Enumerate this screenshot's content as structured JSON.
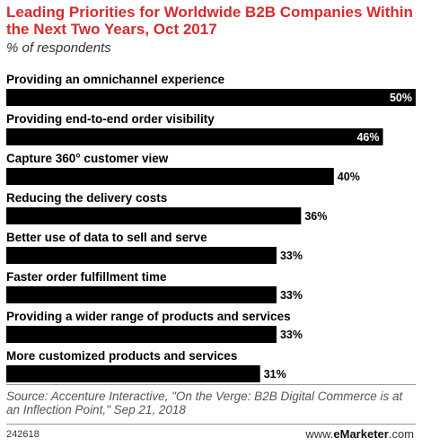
{
  "chart_data": {
    "type": "bar",
    "orientation": "horizontal",
    "title": "Leading Priorities for Worldwide B2B Companies Within the Next Two Years, Oct 2017",
    "subtitle": "% of respondents",
    "categories": [
      "Providing an omnichannel experience",
      "Providing end-to-end order visibility",
      "Capture 360° customer view",
      "Reducing the delivery costs",
      "Better use of data to sell and serve",
      "Faster order fulfillment time",
      "Providing a wider range of products and services",
      "More customized products and services"
    ],
    "values": [
      50,
      46,
      40,
      36,
      33,
      33,
      33,
      31
    ],
    "value_labels": [
      "50%",
      "46%",
      "40%",
      "36%",
      "33%",
      "33%",
      "33%",
      "31%"
    ],
    "xlim": [
      0,
      50
    ],
    "grid": false,
    "bar_color": "#000000"
  },
  "source": "Source: Accenture Interactive, \"On the Verge: B2B Digital Commerce is at an Inflection Point,\" Sep 21, 2018",
  "footer": {
    "chart_id": "242618",
    "brand_prefix": "www.",
    "brand_name": "eMarketer",
    "brand_suffix": ".com"
  },
  "colors": {
    "title": "#d62c2c",
    "bar": "#000000",
    "value_inside": "#ffffff",
    "value_outside": "#000000"
  }
}
